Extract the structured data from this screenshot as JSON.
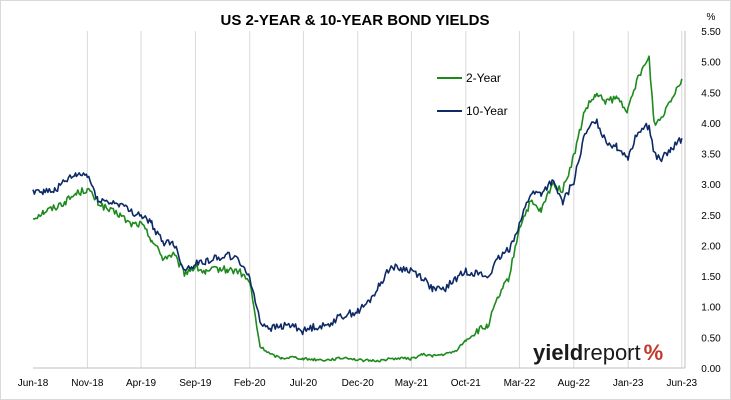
{
  "chart_data": {
    "type": "line",
    "title": "US 2-YEAR & 10-YEAR BOND YIELDS",
    "xlabel": "",
    "ylabel": "%",
    "ylim": [
      0,
      5.5
    ],
    "y_ticks": [
      "0.00",
      "0.50",
      "1.00",
      "1.50",
      "2.00",
      "2.50",
      "3.00",
      "3.50",
      "4.00",
      "4.50",
      "5.00",
      "5.50"
    ],
    "x_ticks": [
      "Jun-18",
      "Nov-18",
      "Apr-19",
      "Sep-19",
      "Feb-20",
      "Jul-20",
      "Dec-20",
      "May-21",
      "Oct-21",
      "Mar-22",
      "Aug-22",
      "Jan-23",
      "Jun-23"
    ],
    "grid": "vertical",
    "legend_position": "top-right",
    "series": [
      {
        "name": "2-Year",
        "color": "#1e8a1e",
        "points": [
          [
            "2018-06-01",
            2.45
          ],
          [
            "2018-07-01",
            2.55
          ],
          [
            "2018-08-01",
            2.62
          ],
          [
            "2018-09-01",
            2.72
          ],
          [
            "2018-10-01",
            2.85
          ],
          [
            "2018-11-01",
            2.92
          ],
          [
            "2018-12-01",
            2.7
          ],
          [
            "2019-01-01",
            2.57
          ],
          [
            "2019-02-01",
            2.5
          ],
          [
            "2019-03-01",
            2.35
          ],
          [
            "2019-04-01",
            2.35
          ],
          [
            "2019-05-01",
            2.1
          ],
          [
            "2019-06-01",
            1.8
          ],
          [
            "2019-07-01",
            1.85
          ],
          [
            "2019-08-01",
            1.55
          ],
          [
            "2019-09-01",
            1.65
          ],
          [
            "2019-10-01",
            1.55
          ],
          [
            "2019-11-01",
            1.62
          ],
          [
            "2019-12-01",
            1.6
          ],
          [
            "2020-01-01",
            1.58
          ],
          [
            "2020-02-01",
            1.4
          ],
          [
            "2020-03-01",
            0.35
          ],
          [
            "2020-04-01",
            0.22
          ],
          [
            "2020-05-01",
            0.16
          ],
          [
            "2020-06-01",
            0.18
          ],
          [
            "2020-07-01",
            0.15
          ],
          [
            "2020-08-01",
            0.14
          ],
          [
            "2020-09-01",
            0.13
          ],
          [
            "2020-10-01",
            0.15
          ],
          [
            "2020-11-01",
            0.17
          ],
          [
            "2020-12-01",
            0.13
          ],
          [
            "2021-01-01",
            0.12
          ],
          [
            "2021-02-01",
            0.12
          ],
          [
            "2021-03-01",
            0.15
          ],
          [
            "2021-04-01",
            0.16
          ],
          [
            "2021-05-01",
            0.15
          ],
          [
            "2021-06-01",
            0.22
          ],
          [
            "2021-07-01",
            0.2
          ],
          [
            "2021-08-01",
            0.22
          ],
          [
            "2021-09-01",
            0.27
          ],
          [
            "2021-10-01",
            0.45
          ],
          [
            "2021-11-01",
            0.6
          ],
          [
            "2021-12-01",
            0.68
          ],
          [
            "2022-01-01",
            1.15
          ],
          [
            "2022-02-01",
            1.5
          ],
          [
            "2022-03-01",
            2.3
          ],
          [
            "2022-04-01",
            2.7
          ],
          [
            "2022-05-01",
            2.55
          ],
          [
            "2022-06-01",
            3.0
          ],
          [
            "2022-07-01",
            2.9
          ],
          [
            "2022-08-01",
            3.45
          ],
          [
            "2022-09-01",
            4.2
          ],
          [
            "2022-10-01",
            4.45
          ],
          [
            "2022-11-01",
            4.35
          ],
          [
            "2022-12-01",
            4.4
          ],
          [
            "2023-01-01",
            4.2
          ],
          [
            "2023-02-01",
            4.8
          ],
          [
            "2023-03-01",
            5.05
          ],
          [
            "2023-03-15",
            4.0
          ],
          [
            "2023-04-01",
            4.05
          ],
          [
            "2023-05-01",
            4.4
          ],
          [
            "2023-06-01",
            4.72
          ]
        ]
      },
      {
        "name": "10-Year",
        "color": "#0d2a66",
        "points": [
          [
            "2018-06-01",
            2.9
          ],
          [
            "2018-07-01",
            2.88
          ],
          [
            "2018-08-01",
            2.9
          ],
          [
            "2018-09-01",
            3.05
          ],
          [
            "2018-10-01",
            3.15
          ],
          [
            "2018-11-01",
            3.15
          ],
          [
            "2018-12-01",
            2.75
          ],
          [
            "2019-01-01",
            2.7
          ],
          [
            "2019-02-01",
            2.68
          ],
          [
            "2019-03-01",
            2.55
          ],
          [
            "2019-04-01",
            2.5
          ],
          [
            "2019-05-01",
            2.35
          ],
          [
            "2019-06-01",
            2.05
          ],
          [
            "2019-07-01",
            2.05
          ],
          [
            "2019-08-01",
            1.6
          ],
          [
            "2019-09-01",
            1.7
          ],
          [
            "2019-10-01",
            1.75
          ],
          [
            "2019-11-01",
            1.8
          ],
          [
            "2019-12-01",
            1.85
          ],
          [
            "2020-01-01",
            1.75
          ],
          [
            "2020-02-01",
            1.5
          ],
          [
            "2020-03-01",
            0.75
          ],
          [
            "2020-04-01",
            0.65
          ],
          [
            "2020-05-01",
            0.68
          ],
          [
            "2020-06-01",
            0.7
          ],
          [
            "2020-07-01",
            0.6
          ],
          [
            "2020-08-01",
            0.68
          ],
          [
            "2020-09-01",
            0.68
          ],
          [
            "2020-10-01",
            0.8
          ],
          [
            "2020-11-01",
            0.88
          ],
          [
            "2020-12-01",
            0.92
          ],
          [
            "2021-01-01",
            1.08
          ],
          [
            "2021-02-01",
            1.35
          ],
          [
            "2021-03-01",
            1.65
          ],
          [
            "2021-04-01",
            1.62
          ],
          [
            "2021-05-01",
            1.6
          ],
          [
            "2021-06-01",
            1.48
          ],
          [
            "2021-07-01",
            1.28
          ],
          [
            "2021-08-01",
            1.28
          ],
          [
            "2021-09-01",
            1.45
          ],
          [
            "2021-10-01",
            1.58
          ],
          [
            "2021-11-01",
            1.55
          ],
          [
            "2021-12-01",
            1.48
          ],
          [
            "2022-01-01",
            1.78
          ],
          [
            "2022-02-01",
            1.95
          ],
          [
            "2022-03-01",
            2.35
          ],
          [
            "2022-04-01",
            2.85
          ],
          [
            "2022-05-01",
            2.85
          ],
          [
            "2022-06-01",
            3.05
          ],
          [
            "2022-07-01",
            2.7
          ],
          [
            "2022-08-01",
            3.05
          ],
          [
            "2022-09-01",
            3.8
          ],
          [
            "2022-10-01",
            4.05
          ],
          [
            "2022-11-01",
            3.7
          ],
          [
            "2022-12-01",
            3.6
          ],
          [
            "2023-01-01",
            3.45
          ],
          [
            "2023-02-01",
            3.9
          ],
          [
            "2023-03-01",
            3.95
          ],
          [
            "2023-03-15",
            3.5
          ],
          [
            "2023-04-01",
            3.4
          ],
          [
            "2023-05-01",
            3.55
          ],
          [
            "2023-06-01",
            3.75
          ]
        ]
      }
    ],
    "watermark": "yieldreport%"
  }
}
